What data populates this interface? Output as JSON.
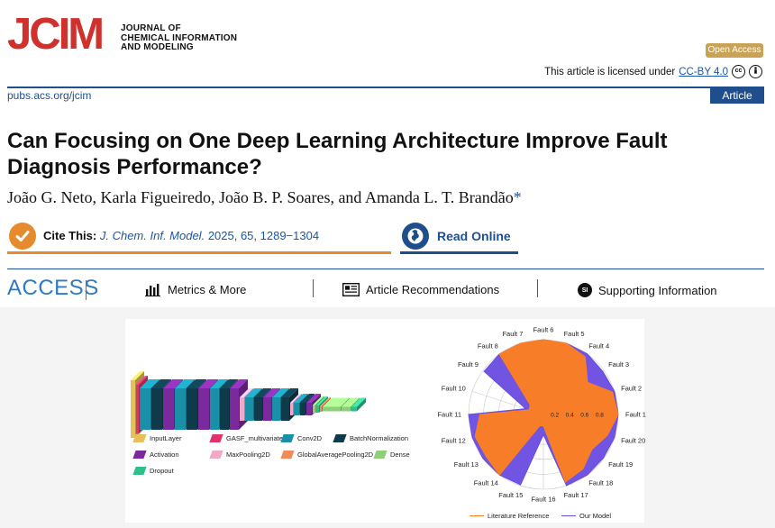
{
  "header": {
    "logo_text": "JCIM",
    "journal_name_lines": [
      "JOURNAL OF",
      "CHEMICAL INFORMATION",
      "AND MODELING"
    ],
    "open_access_label": "Open Access",
    "license_prefix": "This article is licensed under",
    "license_link": "CC-BY 4.0",
    "url": "pubs.acs.org/jcim",
    "article_type": "Article"
  },
  "article": {
    "title": "Can Focusing on One Deep Learning Architecture Improve Fault Diagnosis Performance?",
    "authors": "João G. Neto, Karla Figueiredo, João B. P. Soares, and Amanda L. T. Brandão",
    "corresponding_mark": "*",
    "cite_label": "Cite This:",
    "cite_journal": "J. Chem. Inf. Model.",
    "cite_details": "2025, 65, 1289−1304",
    "read_online_label": "Read Online"
  },
  "access_bar": {
    "title": "ACCESS",
    "metrics_label": "Metrics & More",
    "recommendations_label": "Article Recommendations",
    "supporting_label": "Supporting Information",
    "si_badge": "SI"
  },
  "graphic": {
    "cnn_legend": [
      {
        "label": "InputLayer",
        "color": "#e8c05a"
      },
      {
        "label": "GASF_multivariate",
        "color": "#e0336a"
      },
      {
        "label": "Conv2D",
        "color": "#1a8fa8"
      },
      {
        "label": "BatchNormalization",
        "color": "#0f3a4a"
      },
      {
        "label": "Activation",
        "color": "#7b2a9e"
      },
      {
        "label": "MaxPooling2D",
        "color": "#f2a9c8"
      },
      {
        "label": "GlobalAveragePooling2D",
        "color": "#f08c5a"
      },
      {
        "label": "Dense",
        "color": "#8fcf7a"
      },
      {
        "label": "Dropout",
        "color": "#2fbf8a"
      }
    ],
    "radar": {
      "faults": [
        "Fault 1",
        "Fault 2",
        "Fault 3",
        "Fault 4",
        "Fault 5",
        "Fault 6",
        "Fault 7",
        "Fault 8",
        "Fault 9",
        "Fault 10",
        "Fault 11",
        "Fault 12",
        "Fault 13",
        "Fault 14",
        "Fault 15",
        "Fault 16",
        "Fault 17",
        "Fault 18",
        "Fault 19",
        "Fault 20"
      ],
      "ticks": [
        "0.2",
        "0.4",
        "0.6",
        "0.8"
      ],
      "series": [
        {
          "name": "Literature Reference",
          "color": "#ff7f1e",
          "values": [
            1.0,
            0.97,
            0.73,
            0.95,
            1.0,
            1.0,
            1.0,
            1.0,
            0.22,
            0.2,
            0.85,
            0.96,
            0.95,
            1.0,
            0.16,
            0.15,
            0.95,
            0.9,
            0.8,
            0.9
          ]
        },
        {
          "name": "Our Model",
          "color": "#6a4be0",
          "values": [
            1.0,
            1.0,
            0.98,
            1.0,
            1.0,
            1.0,
            1.0,
            1.0,
            0.98,
            0.25,
            1.0,
            1.0,
            1.0,
            1.0,
            0.99,
            0.27,
            1.0,
            1.0,
            0.99,
            1.0
          ]
        }
      ]
    }
  }
}
